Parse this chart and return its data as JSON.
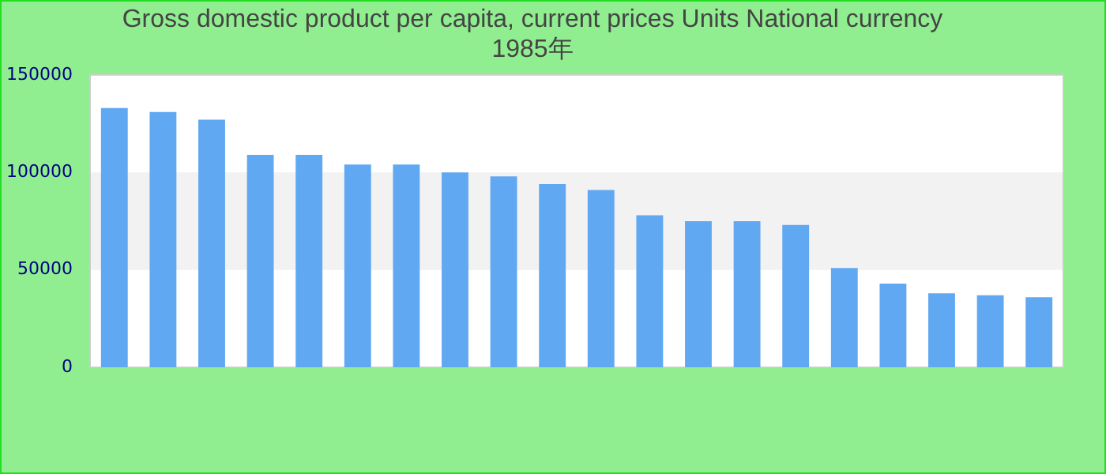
{
  "chart_data": {
    "type": "bar",
    "title": "Gross domestic product per capita, current prices Units National currency 1985年",
    "categories": [
      null,
      null,
      null,
      null,
      null,
      null,
      null,
      null,
      null,
      null,
      null,
      null,
      null,
      null,
      null,
      null,
      null,
      null,
      null,
      null
    ],
    "values": [
      133000,
      131000,
      127000,
      109000,
      109000,
      104000,
      104000,
      100000,
      98000,
      94000,
      91000,
      78000,
      75000,
      75000,
      73000,
      51000,
      43000,
      38000,
      37000,
      36000
    ],
    "color": "#61a8f2",
    "ylim": [
      0,
      150000
    ],
    "yticks": [
      0,
      50000,
      100000,
      150000
    ],
    "bands": [
      {
        "axis": "y",
        "from": 50000,
        "to": 100000,
        "color": "#f2f2f2"
      }
    ],
    "legend": false
  }
}
